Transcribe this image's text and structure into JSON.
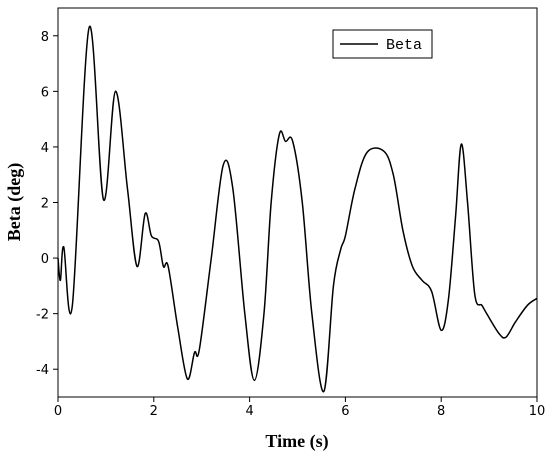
{
  "chart_data": {
    "type": "line",
    "x_label": "Time (s)",
    "y_label": "Beta (deg)",
    "xlim": [
      0,
      10
    ],
    "ylim": [
      -5,
      9
    ],
    "xticks": [
      0,
      2,
      4,
      6,
      8,
      10
    ],
    "yticks": [
      -4,
      -2,
      0,
      2,
      4,
      6,
      8
    ],
    "legend": "upper right",
    "x": [
      0,
      0.05,
      0.12,
      0.3,
      0.65,
      0.95,
      1.2,
      1.45,
      1.65,
      1.82,
      1.95,
      2.1,
      2.2,
      2.3,
      2.5,
      2.7,
      2.85,
      2.95,
      3.2,
      3.45,
      3.65,
      3.9,
      4.1,
      4.3,
      4.45,
      4.62,
      4.75,
      4.9,
      5.1,
      5.3,
      5.55,
      5.75,
      5.9,
      6.0,
      6.2,
      6.45,
      6.8,
      7.0,
      7.2,
      7.4,
      7.6,
      7.8,
      8.0,
      8.15,
      8.3,
      8.42,
      8.55,
      8.7,
      8.85,
      8.95,
      9.2,
      9.35,
      9.55,
      9.8,
      10
    ],
    "series": [
      {
        "name": "Beta",
        "color": "#000000",
        "values": [
          0,
          -0.8,
          0.4,
          -1.7,
          8.3,
          2.1,
          6.0,
          2.5,
          -0.3,
          1.6,
          0.8,
          0.6,
          -0.3,
          -0.3,
          -2.5,
          -4.35,
          -3.4,
          -3.3,
          0,
          3.35,
          2.5,
          -2,
          -4.4,
          -2,
          2,
          4.45,
          4.2,
          4.2,
          2,
          -2,
          -4.8,
          -1,
          0.3,
          0.8,
          2.5,
          3.8,
          3.85,
          3.0,
          1.0,
          -0.3,
          -0.8,
          -1.2,
          -2.6,
          -1.5,
          1.5,
          4.1,
          2,
          -1.3,
          -1.7,
          -2.0,
          -2.7,
          -2.85,
          -2.3,
          -1.7,
          -1.45
        ]
      }
    ]
  }
}
